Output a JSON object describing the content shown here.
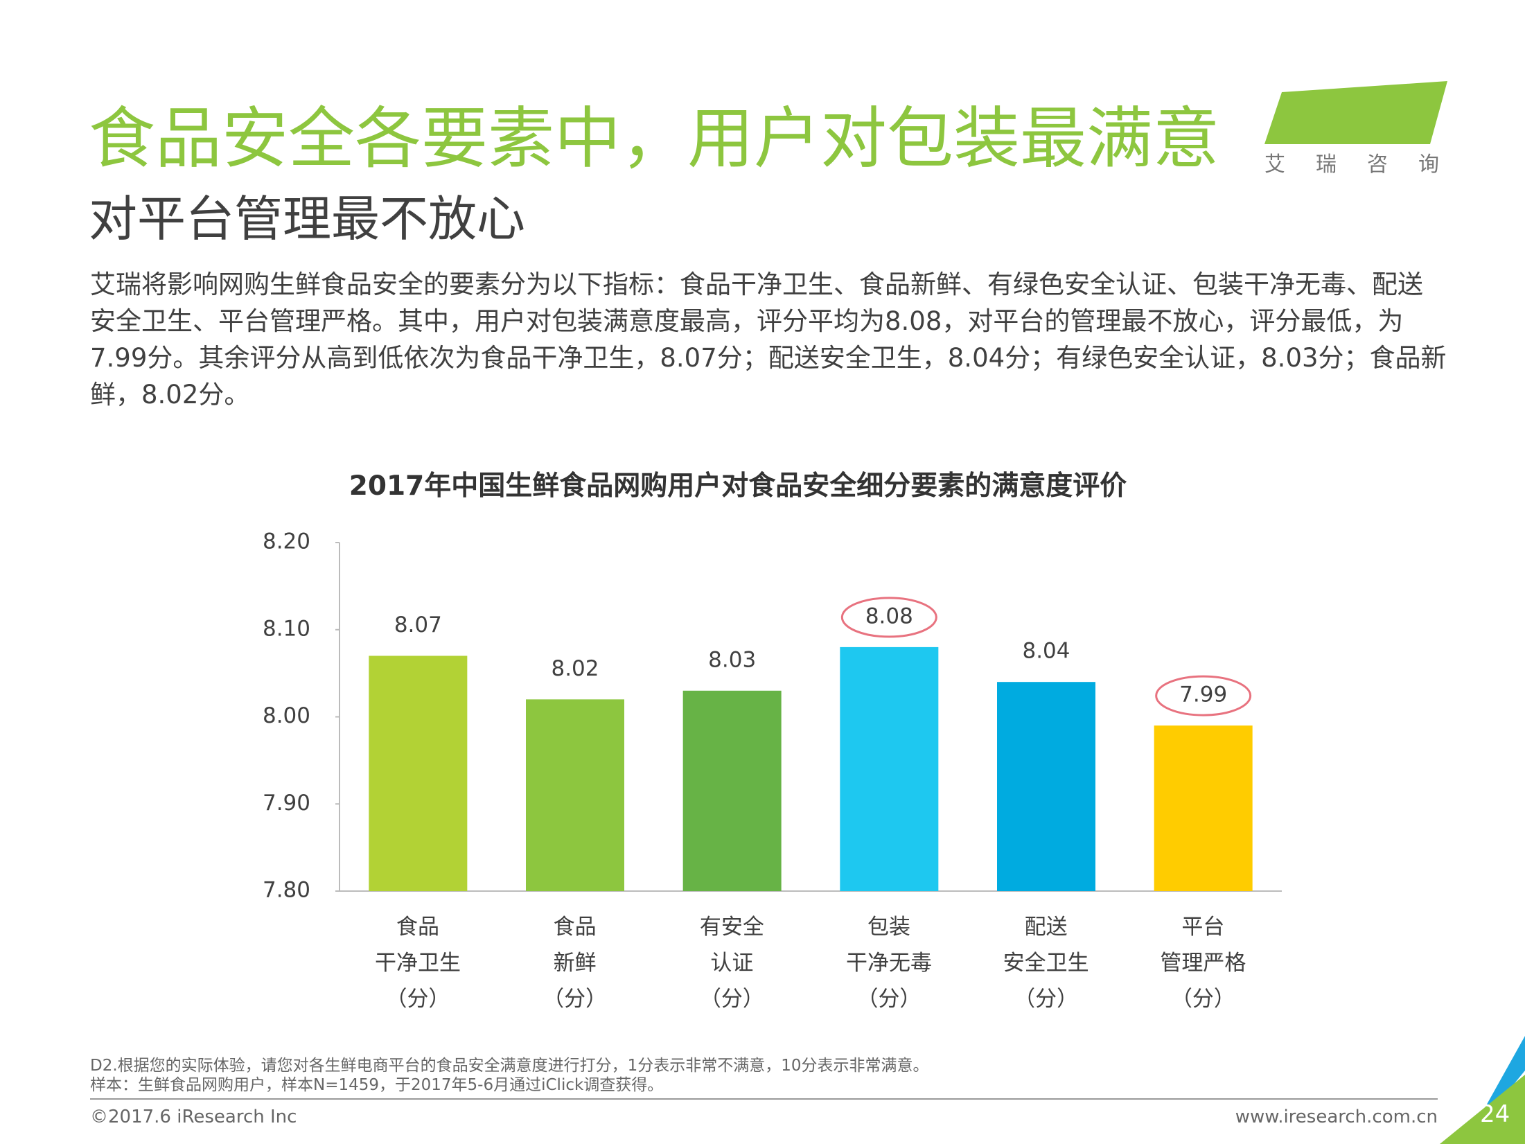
{
  "header": {
    "title": "食品安全各要素中，用户对包装最满意",
    "subtitle": "对平台管理最不放心",
    "logo": "iResearch",
    "logo_cn": "艾瑞咨询"
  },
  "body": "艾瑞将影响网购生鲜食品安全的要素分为以下指标：食品干净卫生、食品新鲜、有绿色安全认证、包装干净无毒、配送安全卫生、平台管理严格。其中，用户对包装满意度最高，评分平均为8.08，对平台的管理最不放心，评分最低，为7.99分。其余评分从高到低依次为食品干净卫生，8.07分；配送安全卫生，8.04分；有绿色安全认证，8.03分；食品新鲜，8.02分。",
  "chart_data": {
    "type": "bar",
    "title": "2017年中国生鲜食品网购用户对食品安全细分要素的满意度评价",
    "categories": [
      "食品\n干净卫生\n（分）",
      "食品\n新鲜\n（分）",
      "有安全\n认证\n（分）",
      "包装\n干净无毒\n（分）",
      "配送\n安全卫生\n（分）",
      "平台\n管理严格\n（分）"
    ],
    "values": [
      8.07,
      8.02,
      8.03,
      8.08,
      8.04,
      7.99
    ],
    "colors": [
      "#b2d235",
      "#8dc63f",
      "#67b346",
      "#1ec8f0",
      "#00abe0",
      "#ffcc00"
    ],
    "circled": [
      3,
      5
    ],
    "circle_color": "#e8727f",
    "ylim": [
      7.8,
      8.2
    ],
    "yticks": [
      {
        "value": 7.8,
        "label": "7.80"
      },
      {
        "value": 7.9,
        "label": "7.90"
      },
      {
        "value": 8,
        "label": "8.00"
      },
      {
        "value": 8.1,
        "label": "8.10"
      },
      {
        "value": 8.2,
        "label": "8.20"
      }
    ]
  },
  "footer": {
    "notes": [
      "D2.根据您的实际体验，请您对各生鲜电商平台的食品安全满意度进行打分，1分表示非常不满意，10分表示非常满意。",
      "样本：生鲜食品网购用户，样本N=1459，于2017年5-6月通过iClick调查获得。"
    ],
    "copyright": "©2017.6 iResearch Inc",
    "website": "www.iresearch.com.cn",
    "page": "24"
  }
}
